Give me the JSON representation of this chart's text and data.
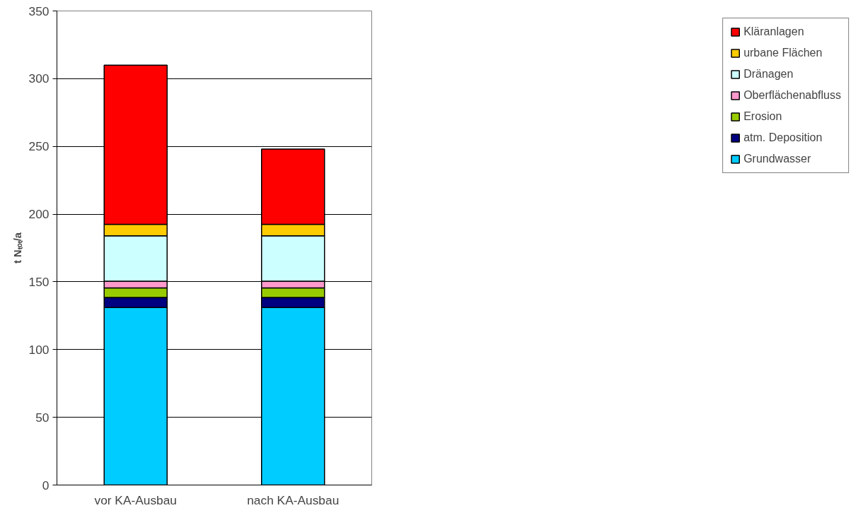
{
  "chart_data": {
    "type": "bar",
    "stacked": true,
    "ylabel": "t Nₜₒₜ/a",
    "categories": [
      "vor KA-Ausbau",
      "nach KA-Ausbau"
    ],
    "series": [
      {
        "name": "Grundwasser",
        "color": "#00ccff",
        "values": [
          131,
          131
        ]
      },
      {
        "name": "atm. Deposition",
        "color": "#000080",
        "values": [
          7.5,
          7.5
        ]
      },
      {
        "name": "Erosion",
        "color": "#99cc00",
        "values": [
          7,
          7
        ]
      },
      {
        "name": "Oberflächenabfluss",
        "color": "#ff99cc",
        "values": [
          5,
          5
        ]
      },
      {
        "name": "Dränagen",
        "color": "#ccffff",
        "values": [
          33.5,
          33.5
        ]
      },
      {
        "name": "urbane Flächen",
        "color": "#ffcc00",
        "values": [
          8.5,
          8.5
        ]
      },
      {
        "name": "Kläranlagen",
        "color": "#ff0000",
        "values": [
          117.5,
          55.5
        ]
      }
    ],
    "ylim": [
      0,
      350
    ],
    "yticks": [
      0,
      50,
      100,
      150,
      200,
      250,
      300,
      350
    ],
    "grid": "y",
    "legend": "right"
  }
}
